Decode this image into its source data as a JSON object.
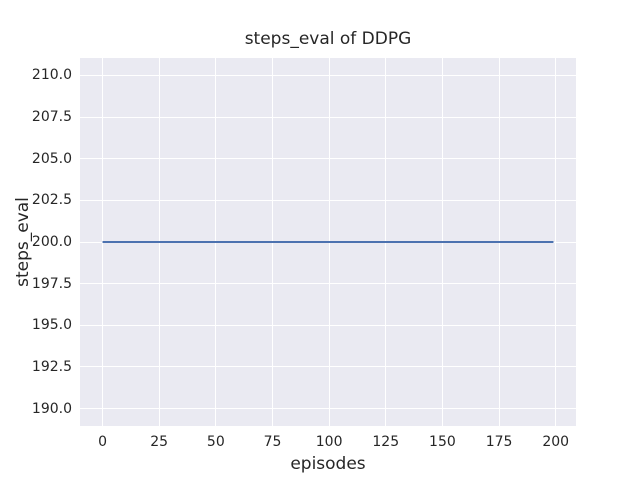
{
  "chart_data": {
    "type": "line",
    "title": "steps_eval of DDPG",
    "xlabel": "episodes",
    "ylabel": "steps_eval",
    "xlim": [
      -9.95,
      208.95
    ],
    "ylim": [
      188.95,
      211.05
    ],
    "xticks": [
      0,
      25,
      50,
      75,
      100,
      125,
      150,
      175,
      200
    ],
    "xtick_labels": [
      "0",
      "25",
      "50",
      "75",
      "100",
      "125",
      "150",
      "175",
      "200"
    ],
    "yticks": [
      190.0,
      192.5,
      195.0,
      197.5,
      200.0,
      202.5,
      205.0,
      207.5,
      210.0
    ],
    "ytick_labels": [
      "190.0",
      "192.5",
      "195.0",
      "197.5",
      "200.0",
      "202.5",
      "205.0",
      "207.5",
      "210.0"
    ],
    "grid": true,
    "legend": false,
    "series": [
      {
        "name": "steps_eval",
        "x": [
          0,
          199
        ],
        "y": [
          200,
          200
        ],
        "constant_value": 200,
        "color": "#4C72B0",
        "linewidth": 2
      }
    ],
    "colors": {
      "plot_background": "#EAEAF2",
      "grid": "#FFFFFF",
      "text": "#262626",
      "figure_background": "#FFFFFF"
    }
  }
}
